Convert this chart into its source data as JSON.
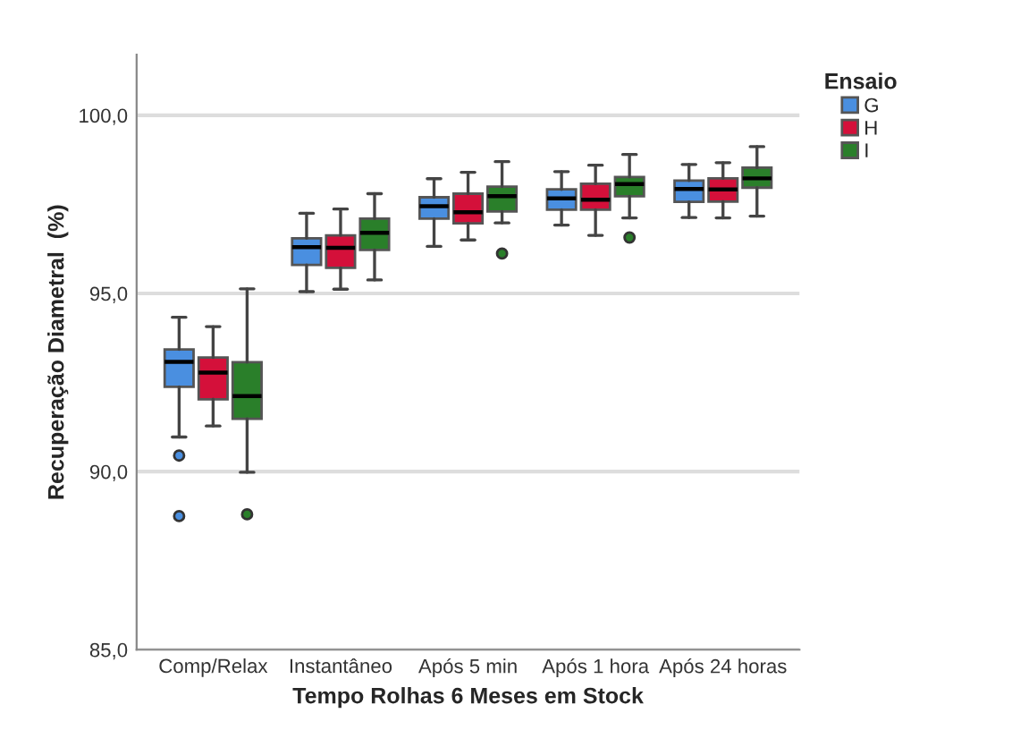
{
  "chart_data": {
    "type": "box",
    "xlabel": "Tempo Rolhas 6 Meses em Stock",
    "ylabel": "Recuperação Diametral  (%)",
    "legend_title": "Ensaio",
    "legend": "top right",
    "grid": "y",
    "categories": [
      "Comp/Relax",
      "Instantâneo",
      "Após 5 min",
      "Após 1 hora",
      "Após 24 horas"
    ],
    "ylim": [
      85,
      101.7
    ],
    "yticks": [
      {
        "value": 85,
        "label": "85,0"
      },
      {
        "value": 90,
        "label": "90,0"
      },
      {
        "value": 95,
        "label": "95,0"
      },
      {
        "value": 100,
        "label": "100,0"
      }
    ],
    "series": [
      {
        "name": "G",
        "color": "#4a8fe0",
        "boxes": [
          {
            "low": 90.97,
            "q1": 92.38,
            "median": 93.08,
            "q3": 93.43,
            "high": 94.33,
            "outliers": [
              90.45,
              88.75
            ]
          },
          {
            "low": 95.05,
            "q1": 95.8,
            "median": 96.3,
            "q3": 96.55,
            "high": 97.25
          },
          {
            "low": 96.32,
            "q1": 97.1,
            "median": 97.45,
            "q3": 97.7,
            "high": 98.22
          },
          {
            "low": 96.92,
            "q1": 97.35,
            "median": 97.67,
            "q3": 97.92,
            "high": 98.42
          },
          {
            "low": 97.13,
            "q1": 97.57,
            "median": 97.93,
            "q3": 98.17,
            "high": 98.62
          }
        ]
      },
      {
        "name": "H",
        "color": "#d4103a",
        "boxes": [
          {
            "low": 91.28,
            "q1": 92.03,
            "median": 92.78,
            "q3": 93.2,
            "high": 94.07
          },
          {
            "low": 95.12,
            "q1": 95.72,
            "median": 96.28,
            "q3": 96.63,
            "high": 97.37
          },
          {
            "low": 96.5,
            "q1": 96.97,
            "median": 97.28,
            "q3": 97.8,
            "high": 98.4
          },
          {
            "low": 96.63,
            "q1": 97.35,
            "median": 97.63,
            "q3": 98.08,
            "high": 98.6
          },
          {
            "low": 97.12,
            "q1": 97.58,
            "median": 97.92,
            "q3": 98.23,
            "high": 98.67
          }
        ]
      },
      {
        "name": "I",
        "color": "#2a7f2a",
        "boxes": [
          {
            "low": 89.98,
            "q1": 91.48,
            "median": 92.12,
            "q3": 93.07,
            "high": 95.13,
            "outliers": [
              88.8
            ]
          },
          {
            "low": 95.38,
            "q1": 96.22,
            "median": 96.7,
            "q3": 97.1,
            "high": 97.8
          },
          {
            "low": 96.98,
            "q1": 97.3,
            "median": 97.73,
            "q3": 98.0,
            "high": 98.7,
            "outliers": [
              96.12
            ]
          },
          {
            "low": 97.12,
            "q1": 97.73,
            "median": 98.07,
            "q3": 98.27,
            "high": 98.9,
            "outliers": [
              96.57
            ]
          },
          {
            "low": 97.17,
            "q1": 97.97,
            "median": 98.23,
            "q3": 98.53,
            "high": 99.12
          }
        ]
      }
    ]
  }
}
